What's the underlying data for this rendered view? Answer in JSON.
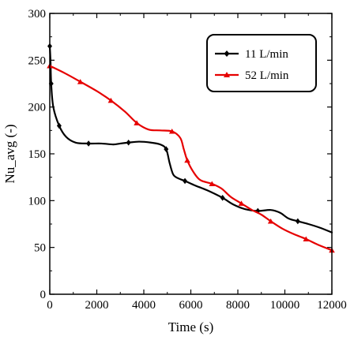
{
  "chart_data": {
    "type": "line",
    "title": "",
    "xlabel": "Time (s)",
    "ylabel": "Nu_avg (-)",
    "xlim": [
      0,
      12000
    ],
    "ylim": [
      0,
      300
    ],
    "xticks": [
      0,
      2000,
      4000,
      6000,
      8000,
      10000,
      12000
    ],
    "yticks": [
      0,
      50,
      100,
      150,
      200,
      250,
      300
    ],
    "grid": false,
    "legend": {
      "position": "top-right"
    },
    "series": [
      {
        "name": "11 L/min",
        "color": "#000000",
        "marker": "diamond",
        "points": [
          [
            0,
            265
          ],
          [
            30,
            250
          ],
          [
            60,
            225
          ],
          [
            150,
            200
          ],
          [
            400,
            180
          ],
          [
            700,
            168
          ],
          [
            1100,
            162
          ],
          [
            1650,
            161
          ],
          [
            2200,
            161
          ],
          [
            2700,
            160
          ],
          [
            3000,
            161
          ],
          [
            3350,
            162
          ],
          [
            3800,
            163
          ],
          [
            4300,
            162
          ],
          [
            4700,
            160
          ],
          [
            4950,
            155
          ],
          [
            5100,
            140
          ],
          [
            5250,
            128
          ],
          [
            5450,
            124
          ],
          [
            5750,
            121
          ],
          [
            6200,
            116
          ],
          [
            6700,
            111
          ],
          [
            7350,
            103
          ],
          [
            7800,
            96
          ],
          [
            8300,
            91
          ],
          [
            8850,
            89
          ],
          [
            9400,
            90
          ],
          [
            9800,
            87
          ],
          [
            10150,
            81
          ],
          [
            10550,
            78
          ],
          [
            11000,
            75
          ],
          [
            11500,
            71
          ],
          [
            12000,
            66
          ]
        ],
        "markers_at": [
          0,
          60,
          400,
          1650,
          3350,
          4950,
          5750,
          7350,
          8850,
          10550
        ]
      },
      {
        "name": "52 L/min",
        "color": "#e60000",
        "marker": "triangle",
        "points": [
          [
            0,
            244
          ],
          [
            650,
            236
          ],
          [
            1300,
            227
          ],
          [
            2000,
            217
          ],
          [
            2600,
            207
          ],
          [
            3200,
            195
          ],
          [
            3700,
            183
          ],
          [
            4200,
            176
          ],
          [
            4700,
            175
          ],
          [
            5200,
            174
          ],
          [
            5550,
            167
          ],
          [
            5700,
            155
          ],
          [
            5850,
            143
          ],
          [
            6100,
            131
          ],
          [
            6400,
            122
          ],
          [
            6900,
            118
          ],
          [
            7300,
            113
          ],
          [
            7700,
            104
          ],
          [
            8150,
            97
          ],
          [
            8600,
            90
          ],
          [
            9000,
            85
          ],
          [
            9400,
            78
          ],
          [
            9900,
            70
          ],
          [
            10400,
            64
          ],
          [
            10900,
            59
          ],
          [
            11400,
            53
          ],
          [
            12000,
            47
          ]
        ],
        "markers_at": [
          0,
          1300,
          2600,
          3700,
          5200,
          5850,
          6900,
          8150,
          9400,
          10900,
          12000
        ]
      }
    ]
  }
}
